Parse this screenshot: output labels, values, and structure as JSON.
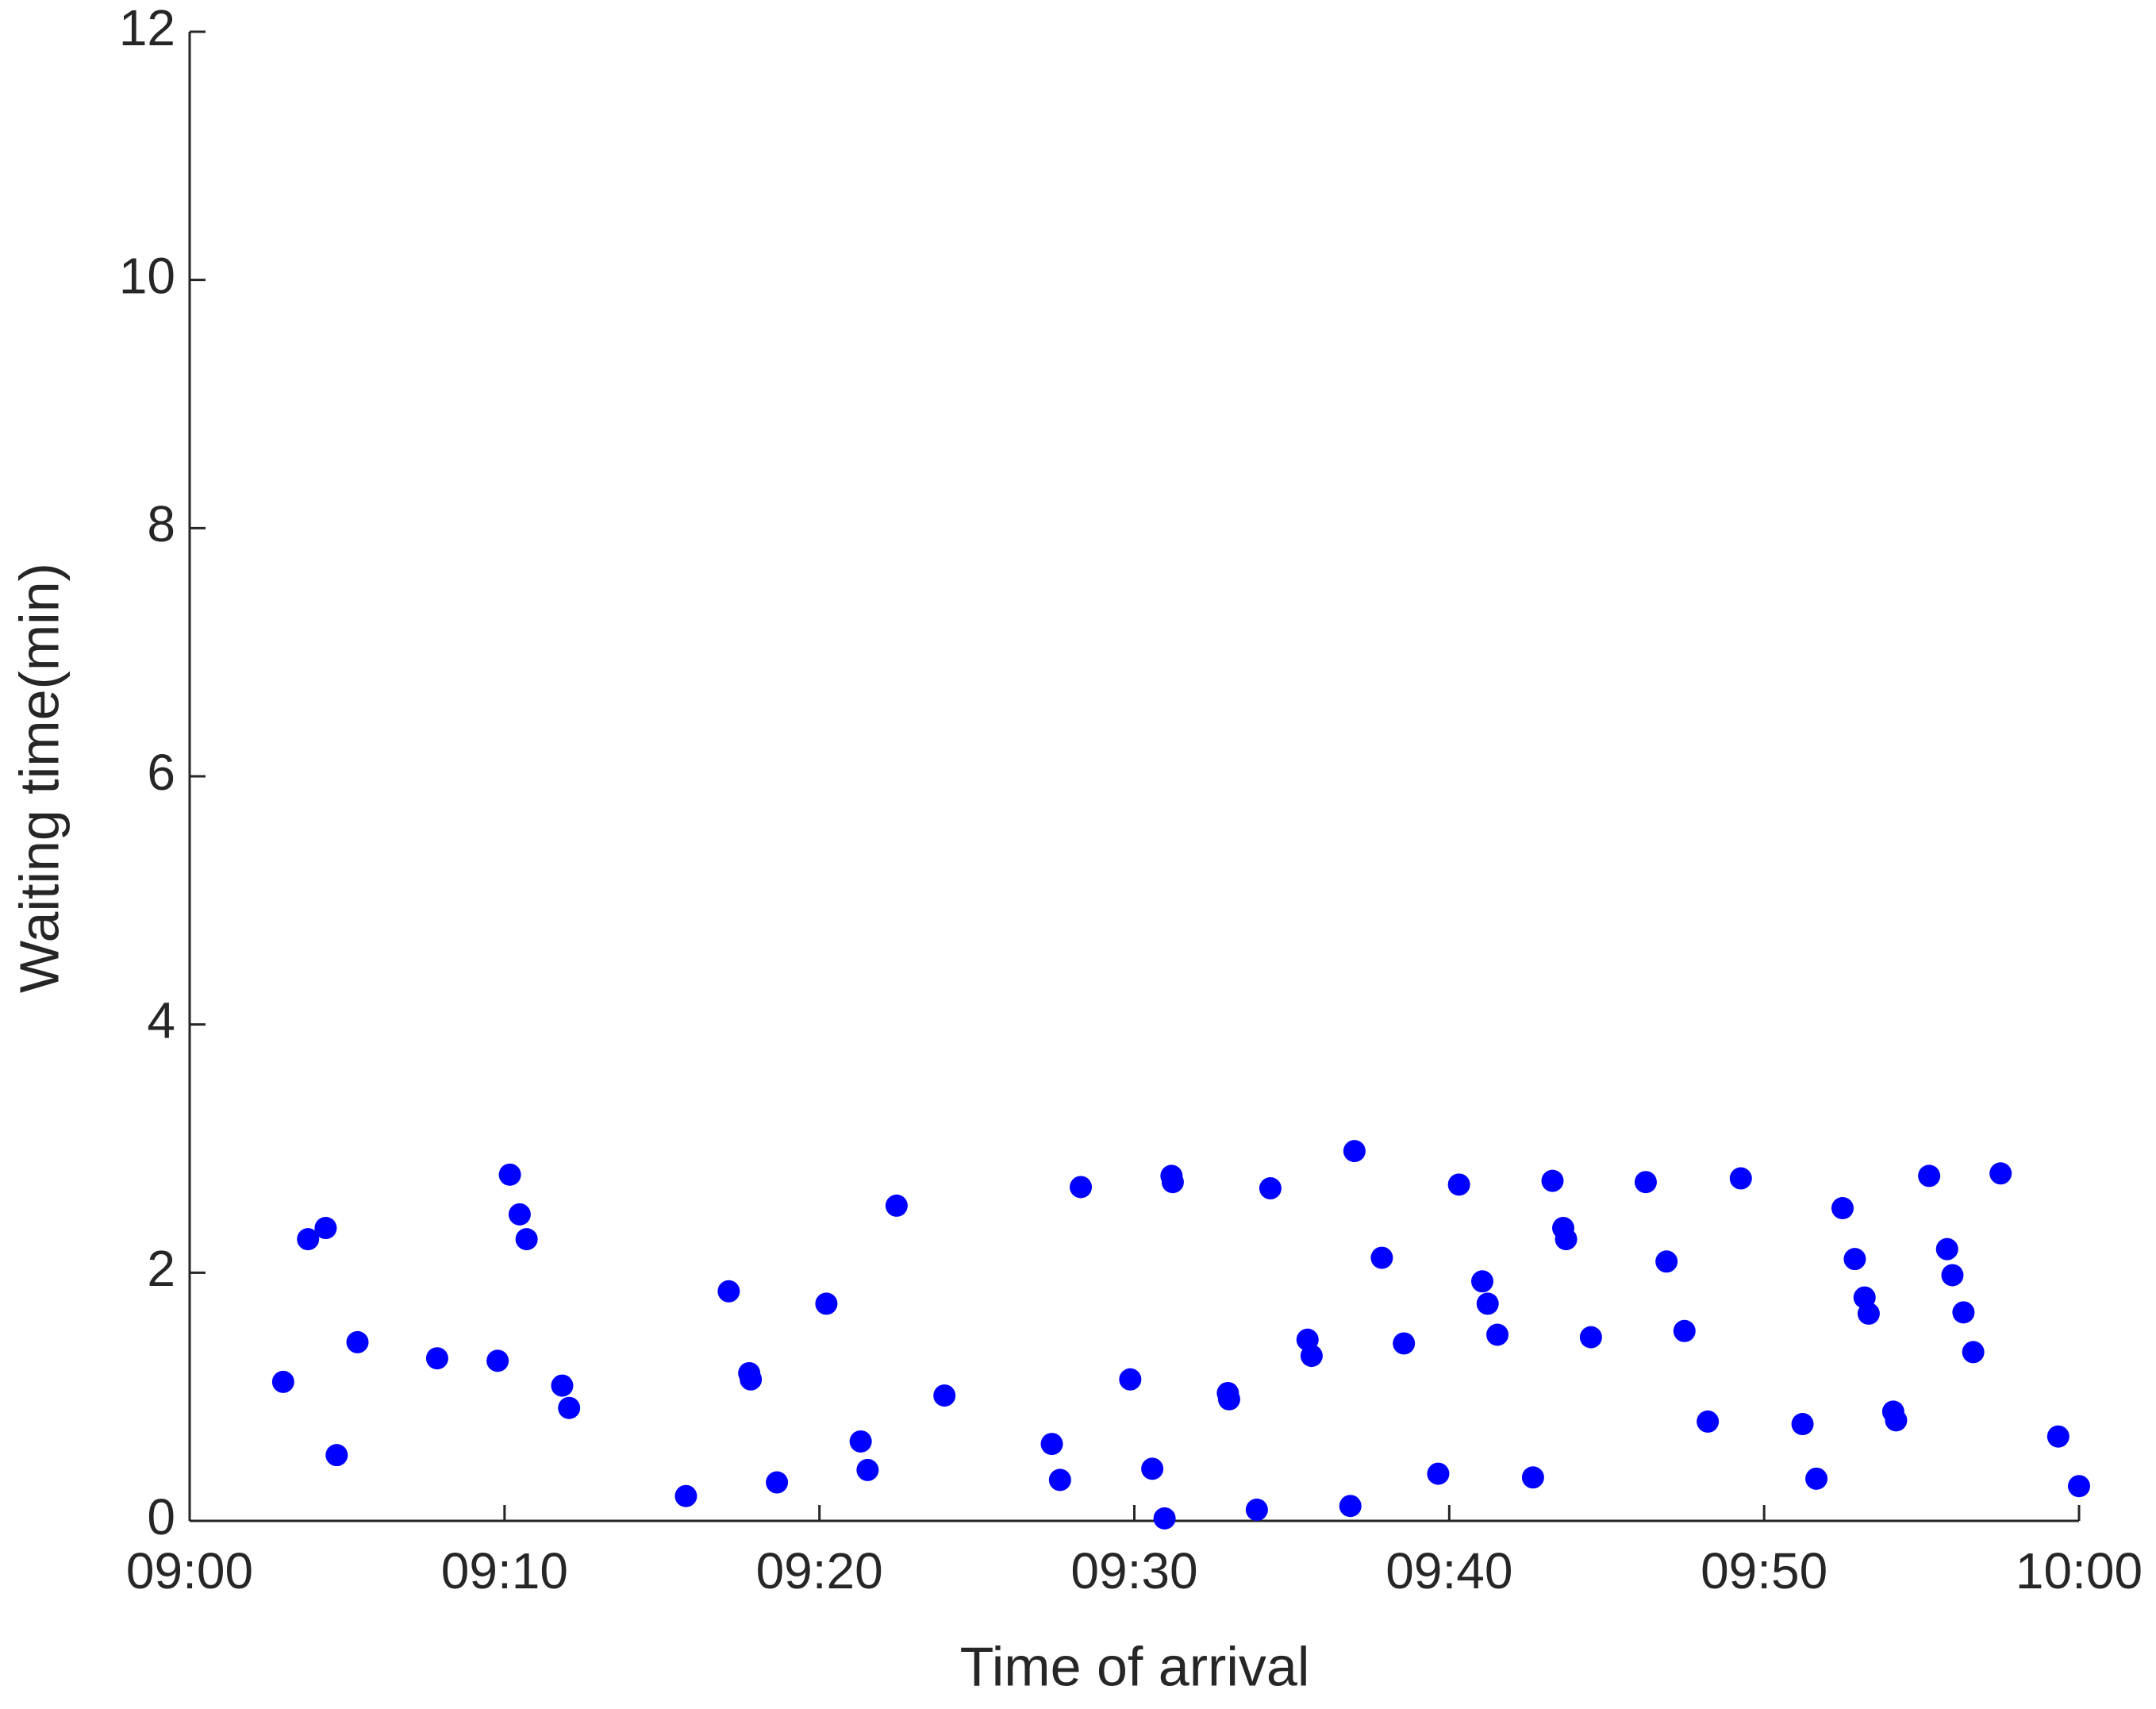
{
  "chart_data": {
    "type": "scatter",
    "xlabel": "Time of arrival",
    "ylabel": "Waiting time(min)",
    "x": [
      2.97,
      3.76,
      4.32,
      4.67,
      5.33,
      7.86,
      9.78,
      10.17,
      10.48,
      10.7,
      11.83,
      12.05,
      15.76,
      17.12,
      17.77,
      17.82,
      18.65,
      20.22,
      21.31,
      21.53,
      22.45,
      23.97,
      27.38,
      27.64,
      28.3,
      29.87,
      30.57,
      30.96,
      31.18,
      31.22,
      32.97,
      33.01,
      33.89,
      34.32,
      35.5,
      35.63,
      36.86,
      36.99,
      37.86,
      38.56,
      39.65,
      40.31,
      41.05,
      41.22,
      41.53,
      42.66,
      43.28,
      43.62,
      43.71,
      44.5,
      46.24,
      46.9,
      47.47,
      48.21,
      49.26,
      51.22,
      51.66,
      52.49,
      52.88,
      53.19,
      53.32,
      54.1,
      54.19,
      55.24,
      55.81,
      55.98,
      56.33,
      56.64,
      57.51,
      59.34,
      60.0
    ],
    "values": [
      1.12,
      2.27,
      2.36,
      0.53,
      1.44,
      1.31,
      1.29,
      2.79,
      2.47,
      2.27,
      1.09,
      0.91,
      0.2,
      1.85,
      1.19,
      1.14,
      0.31,
      1.75,
      0.64,
      0.41,
      2.54,
      1.01,
      0.62,
      0.33,
      2.69,
      1.14,
      0.42,
      0.02,
      2.78,
      2.73,
      1.03,
      0.98,
      0.09,
      2.68,
      1.46,
      1.33,
      0.12,
      2.98,
      2.12,
      1.43,
      0.38,
      2.71,
      1.93,
      1.75,
      1.5,
      0.35,
      2.74,
      2.36,
      2.27,
      1.48,
      2.73,
      2.09,
      1.53,
      0.8,
      2.76,
      0.78,
      0.34,
      2.52,
      2.11,
      1.8,
      1.67,
      0.88,
      0.81,
      2.78,
      2.19,
      1.98,
      1.68,
      1.36,
      2.8,
      0.68,
      0.28
    ],
    "color": "#0000ff",
    "xlim": [
      0,
      60
    ],
    "xticks": [
      {
        "value": 0,
        "label": "09:00"
      },
      {
        "value": 10,
        "label": "09:10"
      },
      {
        "value": 20,
        "label": "09:20"
      },
      {
        "value": 30,
        "label": "09:30"
      },
      {
        "value": 40,
        "label": "09:40"
      },
      {
        "value": 50,
        "label": "09:50"
      },
      {
        "value": 60,
        "label": "10:00"
      }
    ],
    "ylim": [
      0,
      12
    ],
    "yticks": [
      0,
      2,
      4,
      6,
      8,
      10,
      12
    ],
    "grid": false
  }
}
